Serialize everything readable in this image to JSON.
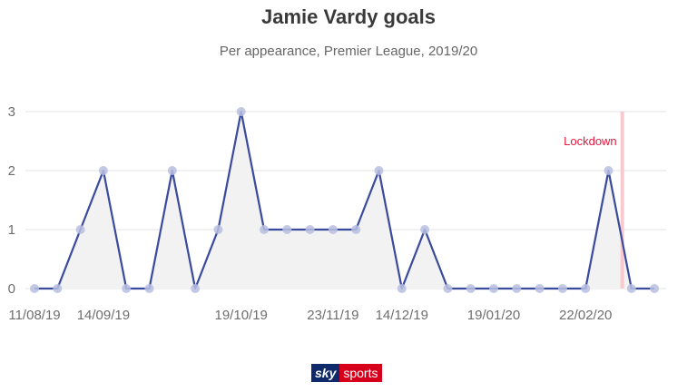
{
  "header": {
    "title": "Jamie Vardy goals",
    "subtitle": "Per appearance, Premier League, 2019/20"
  },
  "chart_data": {
    "type": "line",
    "title": "Jamie Vardy goals",
    "subtitle": "Per appearance, Premier League, 2019/20",
    "xlabel": "",
    "ylabel": "",
    "ylim": [
      0,
      3
    ],
    "yticks": [
      "0",
      "1",
      "2",
      "3"
    ],
    "xtick_labels": [
      {
        "index": 0,
        "label": "11/08/19"
      },
      {
        "index": 3,
        "label": "14/09/19"
      },
      {
        "index": 9,
        "label": "19/10/19"
      },
      {
        "index": 13,
        "label": "23/11/19"
      },
      {
        "index": 16,
        "label": "14/12/19"
      },
      {
        "index": 20,
        "label": "19/01/20"
      },
      {
        "index": 24,
        "label": "22/02/20"
      }
    ],
    "series": [
      {
        "values": [
          0,
          0,
          1,
          2,
          0,
          0,
          2,
          0,
          1,
          3,
          1,
          1,
          1,
          1,
          1,
          2,
          0,
          1,
          0,
          0,
          0,
          0,
          0,
          0,
          0,
          2,
          0,
          0
        ]
      }
    ],
    "grid": true,
    "line_color": "#3a4a9c",
    "marker_color": "#b9bfe0",
    "area_color": "#f2f2f2",
    "annotation": {
      "label": "Lockdown",
      "position_index": 25.6,
      "color": "#e8173c",
      "band_color": "#f9c9d0"
    }
  },
  "branding": {
    "logo_part1": "sky",
    "logo_part2": "sports"
  }
}
